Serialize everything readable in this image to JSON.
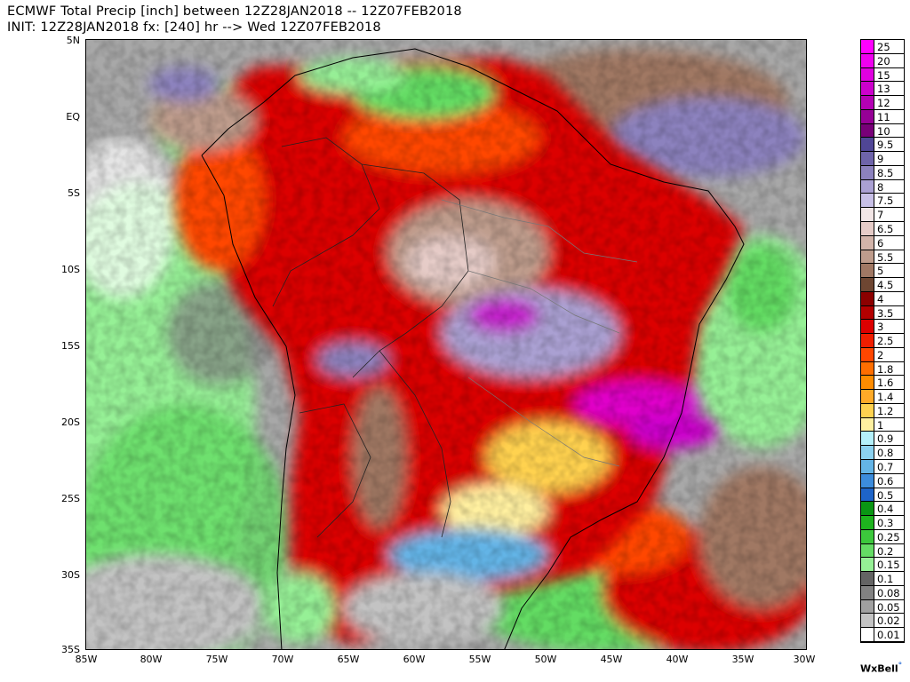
{
  "header": {
    "title_line1": "ECMWF Total Precip [inch] between 12Z28JAN2018 -- 12Z07FEB2018",
    "title_line2": "INIT: 12Z28JAN2018 fx: [240] hr --> Wed 12Z07FEB2018"
  },
  "map": {
    "region": "South America",
    "lat_labels": [
      "5N",
      "EQ",
      "5S",
      "10S",
      "15S",
      "20S",
      "25S",
      "30S",
      "35S"
    ],
    "lon_labels": [
      "85W",
      "80W",
      "75W",
      "70W",
      "65W",
      "60W",
      "55W",
      "50W",
      "45W",
      "40W",
      "35W",
      "30W"
    ],
    "lat_range": [
      -35,
      5
    ],
    "lon_range": [
      -85,
      -30
    ]
  },
  "legend": {
    "items": [
      {
        "label": "25",
        "color": "#ff00ff"
      },
      {
        "label": "20",
        "color": "#f000f0"
      },
      {
        "label": "15",
        "color": "#e000e0"
      },
      {
        "label": "13",
        "color": "#cc00cc"
      },
      {
        "label": "12",
        "color": "#b400b4"
      },
      {
        "label": "11",
        "color": "#960096"
      },
      {
        "label": "10",
        "color": "#780078"
      },
      {
        "label": "9.5",
        "color": "#504696"
      },
      {
        "label": "9",
        "color": "#6e64aa"
      },
      {
        "label": "8.5",
        "color": "#8c82be"
      },
      {
        "label": "8",
        "color": "#aaa0d2"
      },
      {
        "label": "7.5",
        "color": "#c8c0e6"
      },
      {
        "label": "7",
        "color": "#f2e6e6"
      },
      {
        "label": "6.5",
        "color": "#e6ccc8"
      },
      {
        "label": "6",
        "color": "#d2b4aa"
      },
      {
        "label": "5.5",
        "color": "#be9c8c"
      },
      {
        "label": "5",
        "color": "#a07864"
      },
      {
        "label": "4.5",
        "color": "#6e4632"
      },
      {
        "label": "4",
        "color": "#8c0000"
      },
      {
        "label": "3.5",
        "color": "#b40000"
      },
      {
        "label": "3",
        "color": "#dc0000"
      },
      {
        "label": "2.5",
        "color": "#f01e00"
      },
      {
        "label": "2",
        "color": "#ff4600"
      },
      {
        "label": "1.8",
        "color": "#ff6e00"
      },
      {
        "label": "1.6",
        "color": "#ff8c00"
      },
      {
        "label": "1.4",
        "color": "#ffaa28"
      },
      {
        "label": "1.2",
        "color": "#ffd250"
      },
      {
        "label": "1",
        "color": "#fff0a0"
      },
      {
        "label": "0.9",
        "color": "#b4f0fa"
      },
      {
        "label": "0.8",
        "color": "#8cd2f0"
      },
      {
        "label": "0.7",
        "color": "#64b4e6"
      },
      {
        "label": "0.6",
        "color": "#3c8cdc"
      },
      {
        "label": "0.5",
        "color": "#1e64c8"
      },
      {
        "label": "0.4",
        "color": "#0a9614"
      },
      {
        "label": "0.3",
        "color": "#1eb41e"
      },
      {
        "label": "0.25",
        "color": "#3cc83c"
      },
      {
        "label": "0.2",
        "color": "#64dc64"
      },
      {
        "label": "0.15",
        "color": "#96f096"
      },
      {
        "label": "0.1",
        "color": "#646464"
      },
      {
        "label": "0.08",
        "color": "#828282"
      },
      {
        "label": "0.05",
        "color": "#a0a0a0"
      },
      {
        "label": "0.02",
        "color": "#c3c3c3"
      },
      {
        "label": "0.01",
        "color": "#ffffff"
      }
    ]
  },
  "branding": {
    "logo_text": "WxBell"
  }
}
